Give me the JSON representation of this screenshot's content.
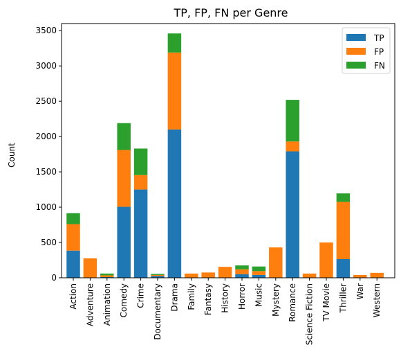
{
  "chart_data": {
    "type": "bar",
    "stacked": true,
    "title": "TP, FP, FN per Genre",
    "xlabel": "",
    "ylabel": "Count",
    "ylim": [
      0,
      3600
    ],
    "yticks": [
      0,
      500,
      1000,
      1500,
      2000,
      2500,
      3000,
      3500
    ],
    "grid": false,
    "legend_position": "top-right",
    "categories": [
      "Action",
      "Adventure",
      "Animation",
      "Comedy",
      "Crime",
      "Documentary",
      "Drama",
      "Family",
      "Fantasy",
      "History",
      "Horror",
      "Music",
      "Mystery",
      "Romance",
      "Science Fiction",
      "TV Movie",
      "Thriller",
      "War",
      "Western"
    ],
    "series": [
      {
        "name": "TP",
        "color": "#1f77b4",
        "values": [
          385,
          0,
          10,
          1005,
          1250,
          25,
          2100,
          0,
          0,
          0,
          50,
          40,
          0,
          1790,
          0,
          0,
          265,
          0,
          0
        ]
      },
      {
        "name": "FP",
        "color": "#ff7f0e",
        "values": [
          375,
          275,
          25,
          805,
          205,
          15,
          1090,
          60,
          75,
          155,
          70,
          55,
          430,
          140,
          60,
          500,
          810,
          40,
          70
        ]
      },
      {
        "name": "FN",
        "color": "#2ca02c",
        "values": [
          155,
          0,
          25,
          380,
          375,
          15,
          270,
          0,
          0,
          0,
          55,
          65,
          0,
          590,
          0,
          0,
          120,
          0,
          0
        ]
      }
    ]
  }
}
